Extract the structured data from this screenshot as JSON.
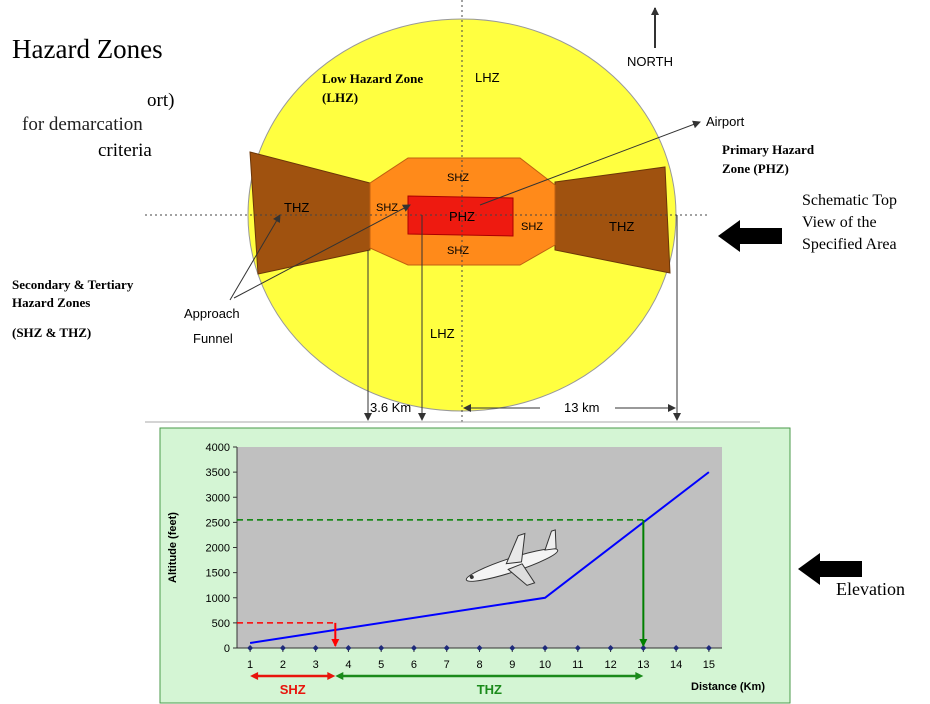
{
  "diagram": {
    "title": "Hazard Zones",
    "subtitle_lines": [
      "ort)",
      "for demarcation",
      "criteria"
    ],
    "north": "NORTH",
    "lhz_label": [
      "Low Hazard Zone",
      "(LHZ)"
    ],
    "zone_labels": {
      "lhz_top": "LHZ",
      "lhz_bottom": "LHZ",
      "thz_left": "THZ",
      "thz_right": "THZ",
      "shz_top": "SHZ",
      "shz_left": "SHZ",
      "shz_right": "SHZ",
      "shz_bottom": "SHZ",
      "phz": "PHZ"
    },
    "airport": "Airport",
    "phz_label": [
      "Primary Hazard",
      "Zone (PHZ)"
    ],
    "schematic": [
      "Schematic Top",
      "View of the",
      "Specified Area"
    ],
    "secondary": [
      "Secondary & Tertiary",
      "Hazard Zones"
    ],
    "secondary_abbr": "(SHZ & THZ)",
    "approach": [
      "Approach",
      "Funnel"
    ],
    "dist_short": "3.6 Km",
    "dist_long": "13 km",
    "elevation": "Elevation"
  },
  "chart_data": {
    "type": "line",
    "x_label": "Distance (Km)",
    "y_label": "Altitude (feet)",
    "xlim": [
      0.6,
      15.4
    ],
    "xticks": [
      1,
      2,
      3,
      4,
      5,
      6,
      7,
      8,
      9,
      10,
      11,
      12,
      13,
      14,
      15
    ],
    "ylim": [
      0,
      4000
    ],
    "yticks": [
      0,
      500,
      1000,
      1500,
      2000,
      2500,
      3000,
      3500,
      4000
    ],
    "series": [
      {
        "color": "#0000ff",
        "x": [
          1,
          10,
          15
        ],
        "values": [
          100,
          1000,
          3500
        ]
      },
      {
        "color": "#1f2a7a",
        "marker": "diamond",
        "x": [
          1,
          2,
          3,
          4,
          5,
          6,
          7,
          8,
          9,
          10,
          11,
          12,
          13,
          14,
          15
        ],
        "values": [
          0,
          0,
          0,
          0,
          0,
          0,
          0,
          0,
          0,
          0,
          0,
          0,
          0,
          0,
          0
        ]
      }
    ],
    "guides": [
      {
        "x": 3.6,
        "y": 500,
        "color": "#ff0000"
      },
      {
        "x": 13,
        "y": 2550,
        "color": "#008000"
      }
    ],
    "zones": [
      {
        "label": "SHZ",
        "from": 1,
        "to": 3.6,
        "color": "#e8140c"
      },
      {
        "label": "THZ",
        "from": 3.6,
        "to": 13,
        "color": "#1a8a1a"
      }
    ]
  }
}
